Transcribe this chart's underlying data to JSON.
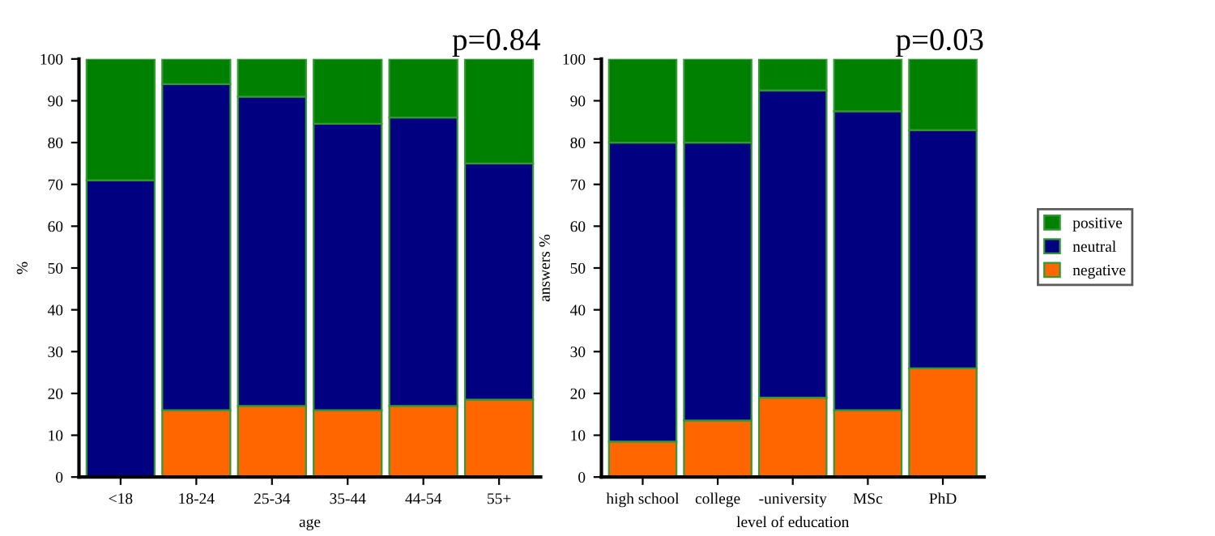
{
  "chart_data": [
    {
      "type": "bar",
      "stacked": true,
      "title": "p=0.84",
      "xlabel": "age",
      "ylabel": "%",
      "categories": [
        "<18",
        "18-24",
        "25-34",
        "35-44",
        "44-54",
        "55+"
      ],
      "ylim": [
        0,
        100
      ],
      "yticks": [
        0,
        10,
        20,
        30,
        40,
        50,
        60,
        70,
        80,
        90,
        100
      ],
      "grid": false,
      "legend": false,
      "series": [
        {
          "color": "#ff6600",
          "values": [
            0,
            16,
            17,
            16,
            17,
            18.5
          ]
        },
        {
          "color": "#000080",
          "values": [
            71,
            78,
            74,
            68.5,
            69,
            56.5
          ]
        },
        {
          "color": "#008000",
          "values": [
            29,
            6,
            9,
            15.5,
            14,
            25
          ]
        }
      ]
    },
    {
      "type": "bar",
      "stacked": true,
      "title": "p=0.03",
      "xlabel": "level of education",
      "ylabel": "answers %",
      "categories": [
        "high school",
        "college",
        "-university",
        "MSc",
        "PhD"
      ],
      "ylim": [
        0,
        100
      ],
      "yticks": [
        0,
        10,
        20,
        30,
        40,
        50,
        60,
        70,
        80,
        90,
        100
      ],
      "grid": false,
      "legend": "right",
      "series": [
        {
          "name": "negative",
          "color": "#ff6600",
          "values": [
            8.5,
            13.5,
            19,
            16,
            26
          ]
        },
        {
          "name": "neutral",
          "color": "#000080",
          "values": [
            71.5,
            66.5,
            73.5,
            71.5,
            57
          ]
        },
        {
          "name": "positive",
          "color": "#008000",
          "values": [
            20,
            20,
            7.5,
            12.5,
            17
          ]
        }
      ]
    }
  ]
}
